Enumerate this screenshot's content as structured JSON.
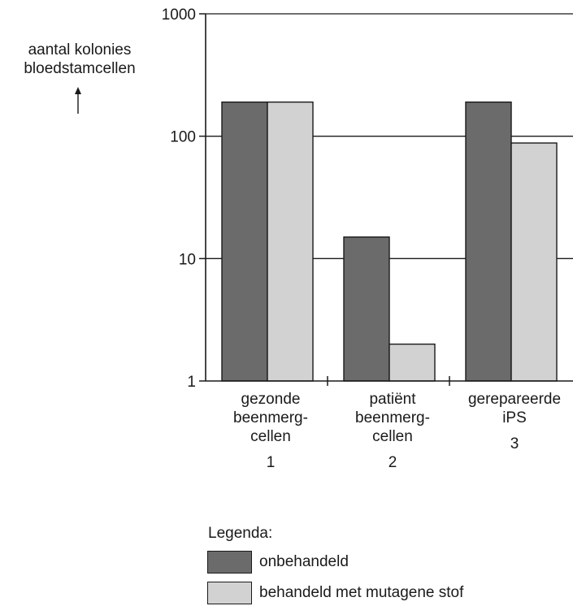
{
  "chart_data": {
    "type": "bar",
    "yscale": "log",
    "ylim": [
      1,
      1000
    ],
    "yticks": [
      "1",
      "10",
      "100",
      "1000"
    ],
    "ylabel": [
      "aantal kolonies",
      "bloedstamcellen"
    ],
    "categories": [
      {
        "lines": [
          "gezonde",
          "beenmerg-",
          "cellen"
        ],
        "number": "1"
      },
      {
        "lines": [
          "patiënt",
          "beenmerg-",
          "cellen"
        ],
        "number": "2"
      },
      {
        "lines": [
          "gerepareerde",
          "iPS"
        ],
        "number": "3"
      }
    ],
    "series": [
      {
        "name": "onbehandeld",
        "color": "#6b6b6b",
        "values": [
          190,
          15,
          190
        ]
      },
      {
        "name": "behandeld met mutagene stof",
        "color": "#d2d2d2",
        "values": [
          190,
          2,
          88
        ]
      }
    ],
    "legend_title": "Legenda:",
    "gridlines": true
  }
}
